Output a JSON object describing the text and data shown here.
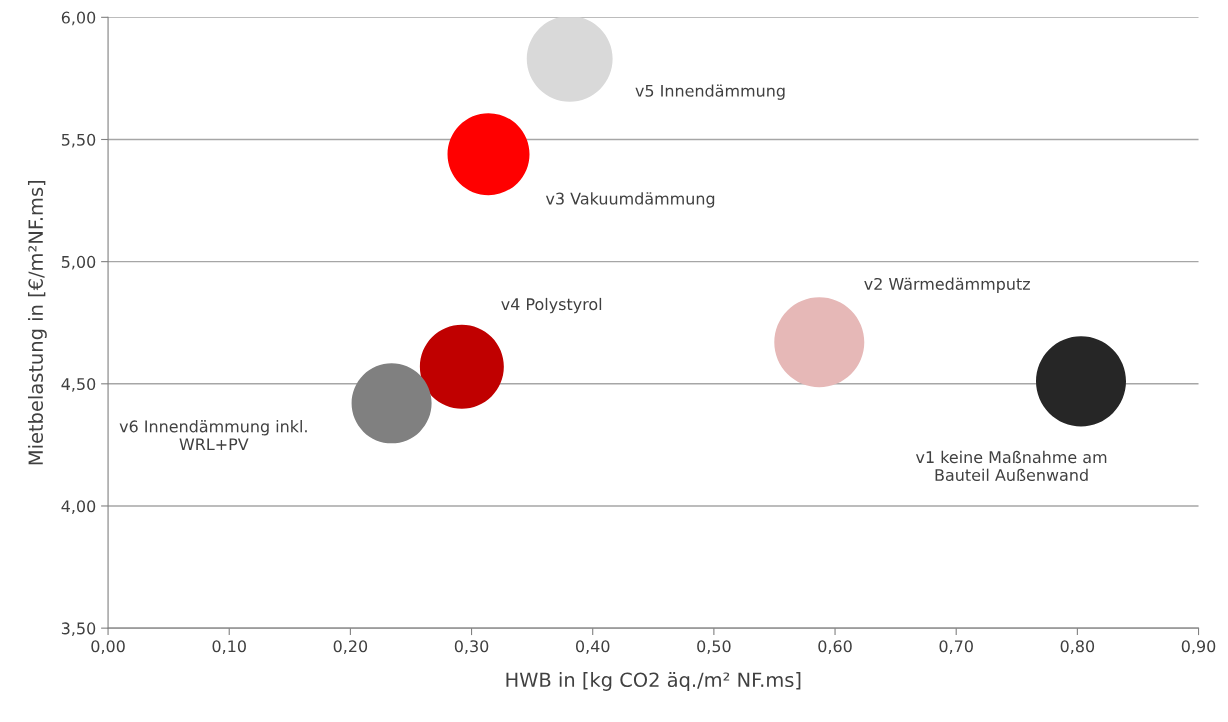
{
  "chart_data": {
    "type": "bubble",
    "xlabel": "HWB in [kg CO2 äq./m² NF.ms]",
    "ylabel": "Mietbelastung in [€/m²NF.ms]",
    "series": [
      {
        "name": "v1 keine Maßnahme am\nBauteil Außenwand",
        "color": "#262626",
        "x": [
          0.803
        ],
        "values": [
          4.51
        ],
        "sizes": [
          1.0
        ]
      },
      {
        "name": "v2 Wärmedämmputz",
        "color": "#e6b8b7",
        "x": [
          0.587
        ],
        "values": [
          4.67
        ],
        "sizes": [
          1.0
        ]
      },
      {
        "name": "v3 Vakuumdämmung",
        "color": "#ff0000",
        "x": [
          0.314
        ],
        "values": [
          5.44
        ],
        "sizes": [
          0.83
        ]
      },
      {
        "name": "v4 Polystyrol",
        "color": "#c00000",
        "x": [
          0.292
        ],
        "values": [
          4.57
        ],
        "sizes": [
          0.87
        ]
      },
      {
        "name": "v5 Innendämmung",
        "color": "#d9d9d9",
        "x": [
          0.381
        ],
        "values": [
          5.83
        ],
        "sizes": [
          0.91
        ]
      },
      {
        "name": "v6 Innendämmung inkl.\nWRL+PV",
        "color": "#808080",
        "x": [
          0.234
        ],
        "values": [
          4.42
        ],
        "sizes": [
          0.79
        ]
      }
    ],
    "xlim": [
      0,
      0.9
    ],
    "xticks": [
      {
        "value": 0,
        "label": "0,00"
      },
      {
        "value": 0.1,
        "label": "0,10"
      },
      {
        "value": 0.2,
        "label": "0,20"
      },
      {
        "value": 0.3,
        "label": "0,30"
      },
      {
        "value": 0.4,
        "label": "0,40"
      },
      {
        "value": 0.5,
        "label": "0,50"
      },
      {
        "value": 0.6,
        "label": "0,60"
      },
      {
        "value": 0.7,
        "label": "0,70"
      },
      {
        "value": 0.8,
        "label": "0,80"
      },
      {
        "value": 0.9,
        "label": "0,90"
      }
    ],
    "ylim": [
      3.5,
      6.0
    ],
    "yticks": [
      {
        "value": 3.5,
        "label": "3,50"
      },
      {
        "value": 4.0,
        "label": "4,00"
      },
      {
        "value": 4.5,
        "label": "4,50"
      },
      {
        "value": 5.0,
        "label": "5,00"
      },
      {
        "value": 5.5,
        "label": "5,50"
      },
      {
        "value": 6.0,
        "label": "6,00"
      }
    ],
    "grid": "y",
    "legend": false
  }
}
